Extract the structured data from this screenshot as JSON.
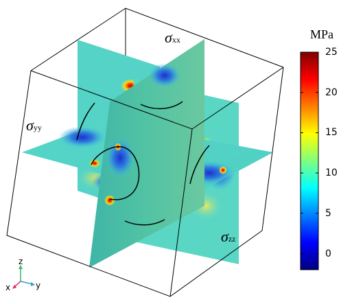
{
  "labels": {
    "sigma_xx": {
      "symbol": "σ",
      "sub": "xx"
    },
    "sigma_yy": {
      "symbol": "σ",
      "sub": "yy"
    },
    "sigma_zz": {
      "symbol": "σ",
      "sub": "zz"
    }
  },
  "colorbar": {
    "unit": "MPa",
    "ticks": [
      "25",
      "20",
      "15",
      "10",
      "5",
      "0"
    ],
    "range": [
      -2,
      25
    ],
    "colormap": [
      "#00007f",
      "#0000ff",
      "#007fff",
      "#00ffff",
      "#7fff7f",
      "#ffff00",
      "#ff7f00",
      "#ff0000",
      "#7f0000"
    ]
  },
  "triad": {
    "x": "x",
    "y": "y",
    "z": "z",
    "colors": {
      "x": "#e0206c",
      "y": "#2da0d0",
      "z": "#3cb371"
    }
  }
}
